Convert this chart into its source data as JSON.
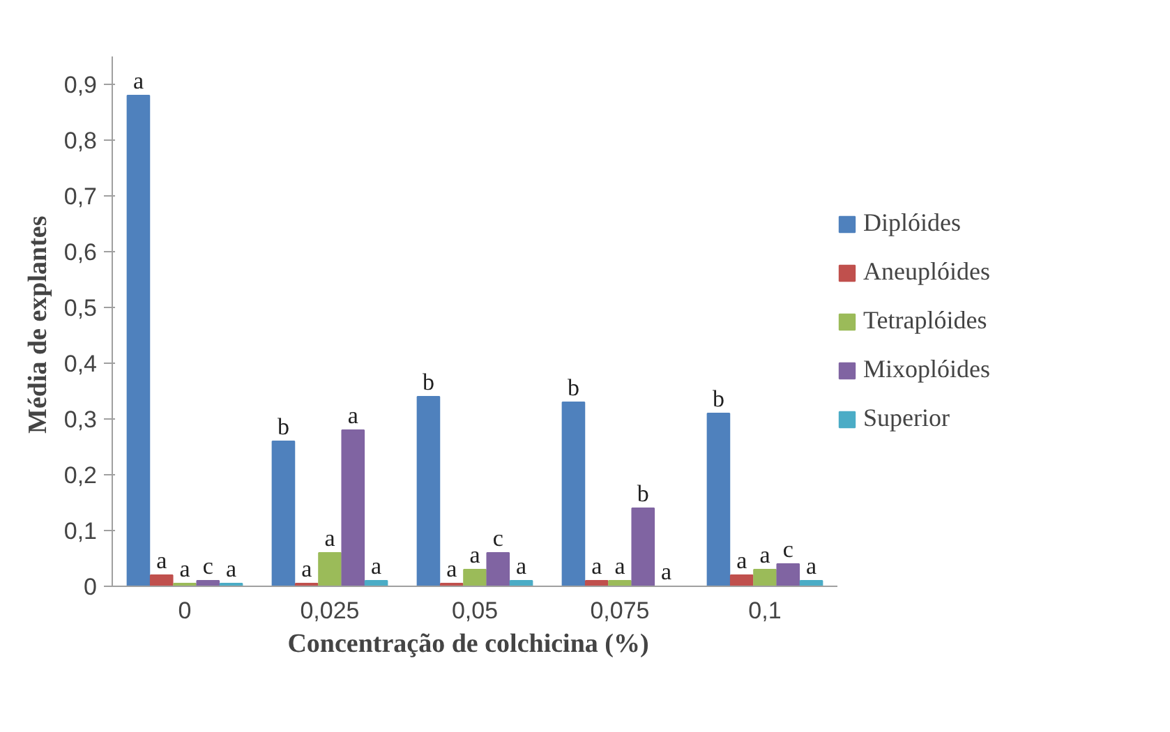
{
  "chart_data": {
    "type": "bar",
    "xlabel": "Concentração  de colchicina  (%)",
    "ylabel": "Média  de explantes",
    "categories": [
      "0",
      "0,025",
      "0,05",
      "0,075",
      "0,1"
    ],
    "series": [
      {
        "name": "Diplóides",
        "color": "#4f81bd",
        "values": [
          0.88,
          0.26,
          0.34,
          0.33,
          0.31
        ],
        "value_labels": [
          "a",
          "b",
          "b",
          "b",
          "b"
        ]
      },
      {
        "name": "Aneuplóides",
        "color": "#c0504d",
        "values": [
          0.02,
          0.005,
          0.005,
          0.01,
          0.02
        ],
        "value_labels": [
          "a",
          "a",
          "a",
          "a",
          "a"
        ]
      },
      {
        "name": "Tetraplóides",
        "color": "#9bbb59",
        "values": [
          0.005,
          0.06,
          0.03,
          0.01,
          0.03
        ],
        "value_labels": [
          "a",
          "a",
          "a",
          "a",
          "a"
        ]
      },
      {
        "name": "Mixoplóides",
        "color": "#8064a2",
        "values": [
          0.01,
          0.28,
          0.06,
          0.14,
          0.04
        ],
        "value_labels": [
          "c",
          "a",
          "c",
          "b",
          "c"
        ]
      },
      {
        "name": "Superior",
        "color": "#4bacc6",
        "values": [
          0.005,
          0.01,
          0.01,
          0.0,
          0.01
        ],
        "value_labels": [
          "a",
          "a",
          "a",
          "a",
          "a"
        ]
      }
    ],
    "ylim": [
      0,
      0.95
    ],
    "yticks": [
      0,
      {
        "value": 0.1,
        "label": "0,1"
      },
      {
        "value": 0.2,
        "label": "0,2"
      },
      {
        "value": 0.3,
        "label": "0,3"
      },
      {
        "value": 0.4,
        "label": "0,4"
      },
      {
        "value": 0.5,
        "label": "0,5"
      },
      {
        "value": 0.6,
        "label": "0,6"
      },
      {
        "value": 0.7,
        "label": "0,7"
      },
      {
        "value": 0.8,
        "label": "0,8"
      },
      {
        "value": 0.9,
        "label": "0,9"
      }
    ],
    "grid": false,
    "legend": "right"
  }
}
